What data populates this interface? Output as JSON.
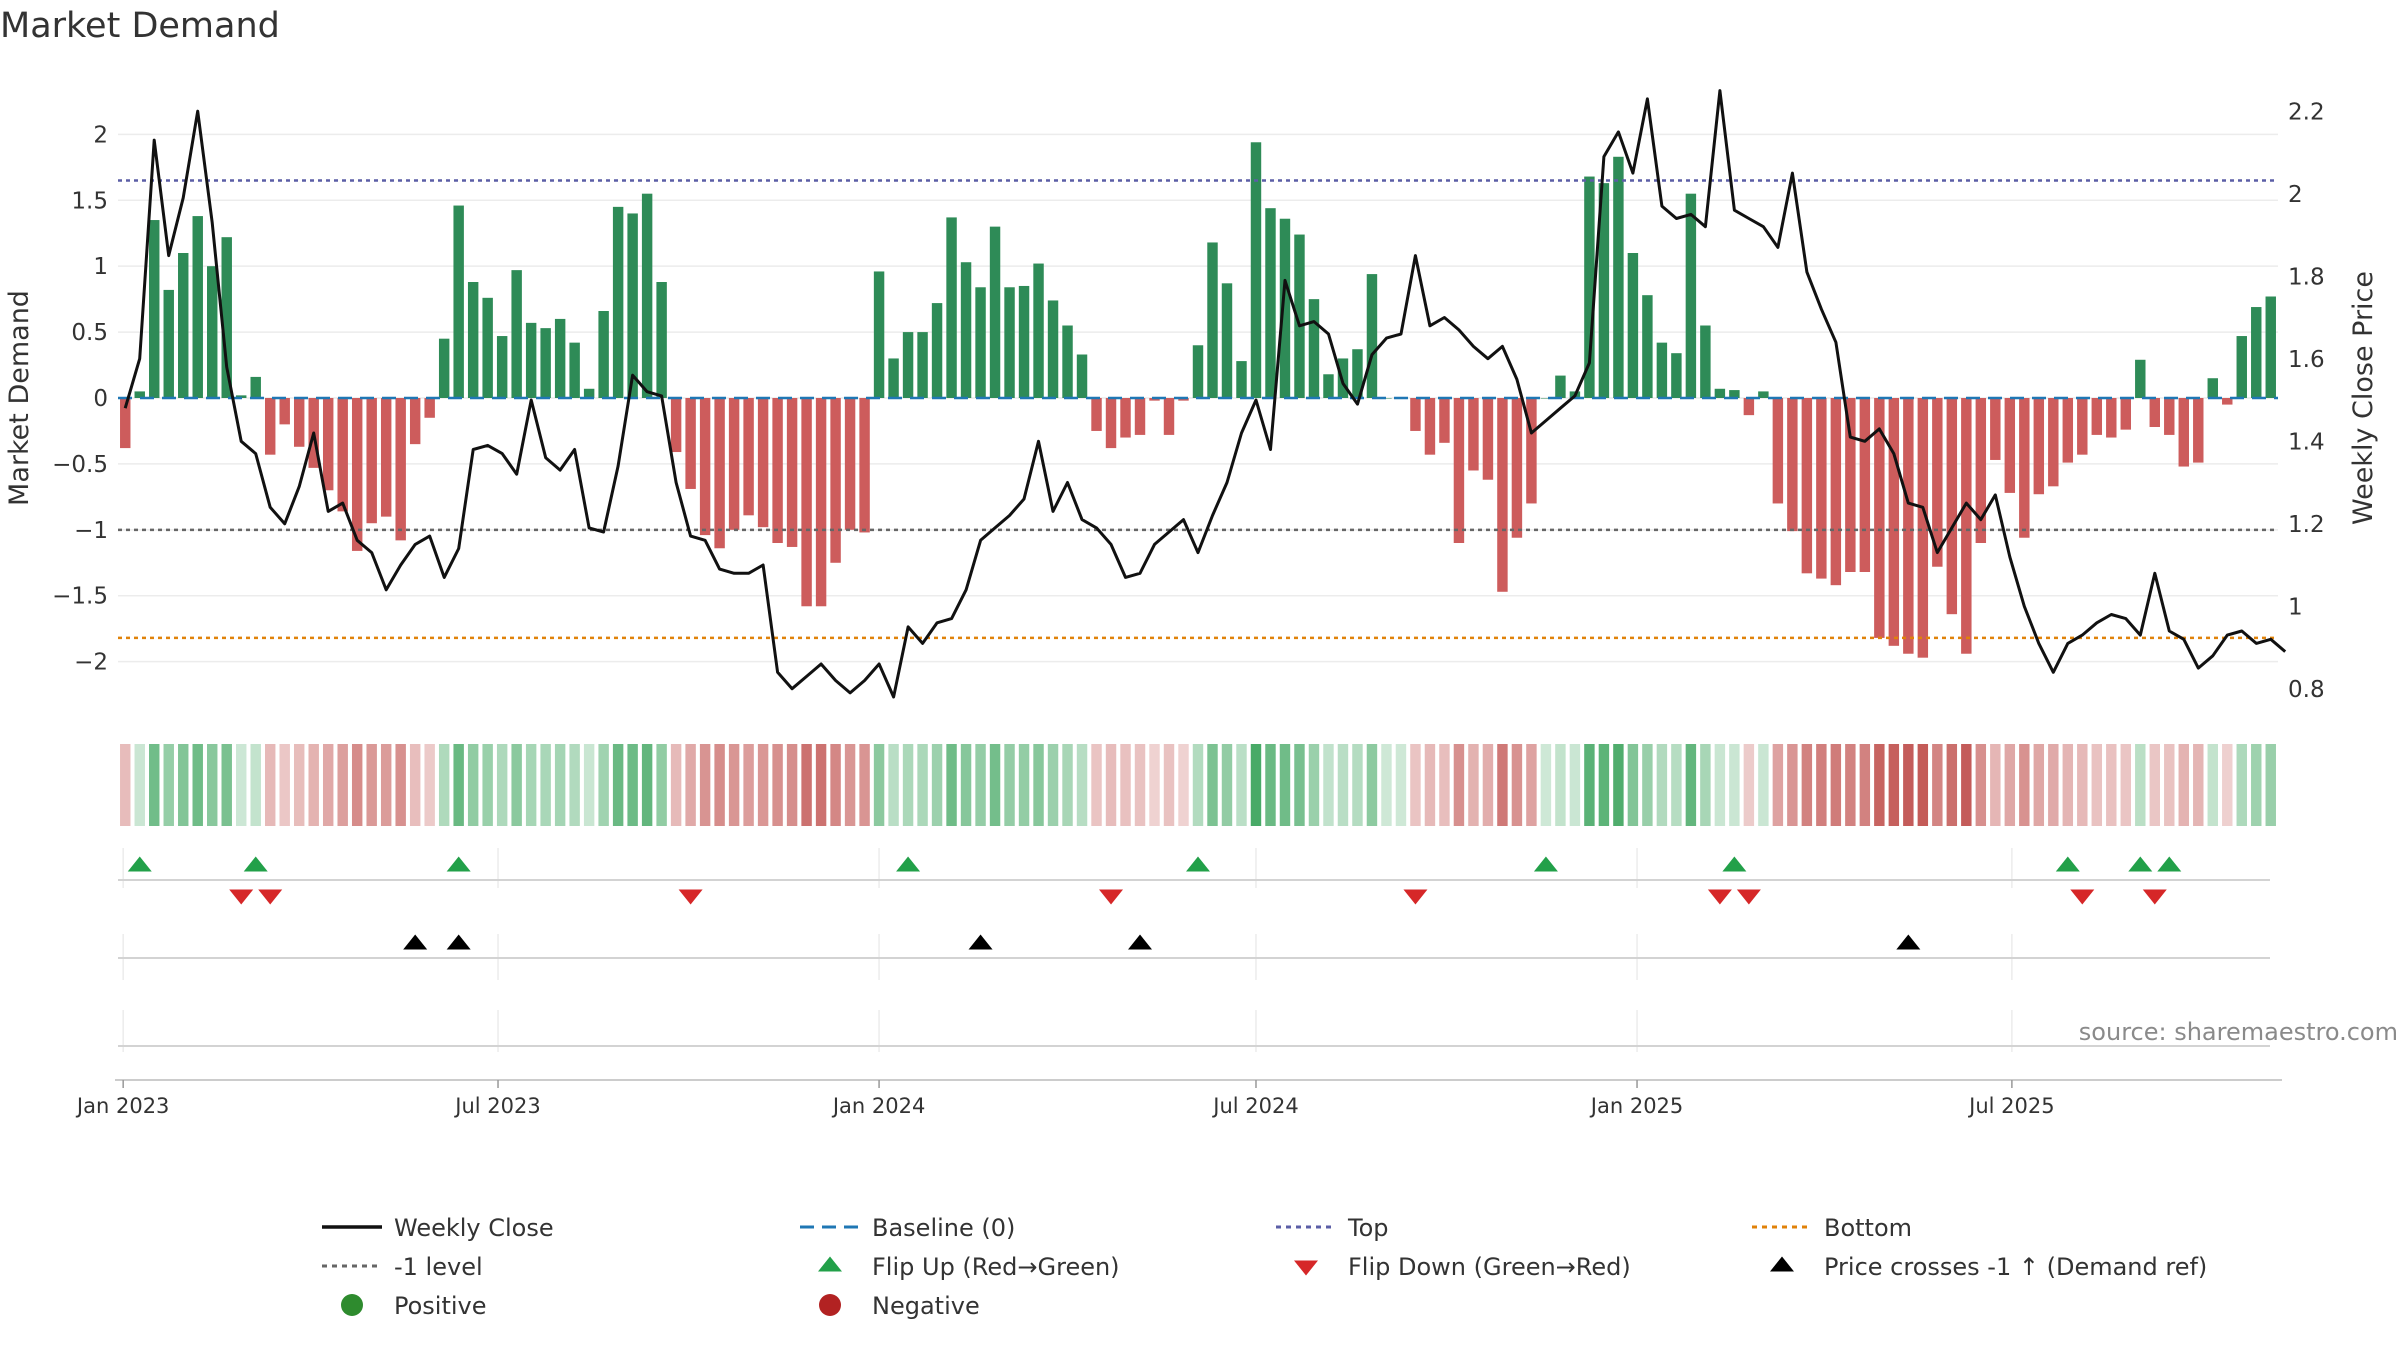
{
  "title": "Market Demand",
  "source": "source: sharemaestro.com",
  "colors": {
    "positive": "#2e8b57",
    "negative": "#cd5c5c",
    "close": "#111111",
    "baseline": "#1f77b4",
    "top": "#5b5ea6",
    "minus1": "#666666",
    "bottom": "#e0820a",
    "flipUp": "#22a049",
    "flipDown": "#d62728",
    "cross": "#000000",
    "legendPositive": "#2e8b2e",
    "legendNegative": "#b22222"
  },
  "chart_data": {
    "type": "bar",
    "title": "Market Demand",
    "ylabel": "Market Demand",
    "y2label": "Weekly Close Price",
    "ylim": [
      -2.2,
      2.2
    ],
    "y2lim": [
      0.7,
      2.3
    ],
    "yticks": [
      "2",
      "1.5",
      "1",
      "0.5",
      "0",
      "−0.5",
      "−1",
      "−1.5",
      "−2"
    ],
    "yticks_values": [
      2,
      1.5,
      1,
      0.5,
      0,
      -0.5,
      -1,
      -1.5,
      -2
    ],
    "y2ticks": [
      "2.2",
      "2",
      "1.8",
      "1.6",
      "1.4",
      "1.2",
      "1",
      "0.8"
    ],
    "y2ticks_values": [
      2.2,
      2.0,
      1.8,
      1.6,
      1.4,
      1.2,
      1.0,
      0.8
    ],
    "x_start": "2023-01-02",
    "x_step_days": 7,
    "xticks": [
      {
        "label": "Jan 2023",
        "date": "2023-01-01"
      },
      {
        "label": "Jul 2023",
        "date": "2023-07-01"
      },
      {
        "label": "Jan 2024",
        "date": "2024-01-01"
      },
      {
        "label": "Jul 2024",
        "date": "2024-07-01"
      },
      {
        "label": "Jan 2025",
        "date": "2025-01-01"
      },
      {
        "label": "Jul 2025",
        "date": "2025-07-01"
      }
    ],
    "reference_lines": {
      "top": 1.65,
      "minus1": -1.0,
      "bottom": -1.82,
      "baseline": 0
    },
    "demand": [
      -0.38,
      0.05,
      1.35,
      0.82,
      1.1,
      1.38,
      1.0,
      1.22,
      0.02,
      0.16,
      -0.43,
      -0.2,
      -0.37,
      -0.53,
      -0.7,
      -0.86,
      -1.16,
      -0.95,
      -0.9,
      -1.08,
      -0.35,
      -0.15,
      0.45,
      1.46,
      0.88,
      0.76,
      0.47,
      0.97,
      0.57,
      0.53,
      0.6,
      0.42,
      0.07,
      0.66,
      1.45,
      1.4,
      1.55,
      0.88,
      -0.41,
      -0.69,
      -1.04,
      -1.14,
      -1.0,
      -0.89,
      -0.98,
      -1.1,
      -1.13,
      -1.58,
      -1.58,
      -1.25,
      -1.0,
      -1.02,
      0.96,
      0.3,
      0.5,
      0.5,
      0.72,
      1.37,
      1.03,
      0.84,
      1.3,
      0.84,
      0.85,
      1.02,
      0.74,
      0.55,
      0.33,
      -0.25,
      -0.38,
      -0.3,
      -0.28,
      -0.02,
      -0.28,
      -0.02,
      0.4,
      1.18,
      0.87,
      0.28,
      1.94,
      1.44,
      1.36,
      1.24,
      0.75,
      0.18,
      0.3,
      0.37,
      0.94,
      0.0,
      0.0,
      -0.25,
      -0.43,
      -0.34,
      -1.1,
      -0.55,
      -0.62,
      -1.47,
      -1.06,
      -0.8,
      0.0,
      0.17,
      0.05,
      1.68,
      1.63,
      1.83,
      1.1,
      0.78,
      0.42,
      0.34,
      1.55,
      0.55,
      0.07,
      0.06,
      -0.13,
      0.05,
      -0.8,
      -1.01,
      -1.33,
      -1.37,
      -1.42,
      -1.32,
      -1.32,
      -1.82,
      -1.88,
      -1.94,
      -1.97,
      -1.28,
      -1.64,
      -1.94,
      -1.1,
      -0.47,
      -0.72,
      -1.06,
      -0.73,
      -0.67,
      -0.49,
      -0.43,
      -0.28,
      -0.3,
      -0.24,
      0.29,
      -0.22,
      -0.28,
      -0.52,
      -0.49,
      0.15,
      -0.05,
      0.47,
      0.69,
      0.77
    ],
    "close": [
      1.48,
      1.6,
      2.13,
      1.85,
      1.99,
      2.2,
      1.93,
      1.58,
      1.4,
      1.37,
      1.24,
      1.2,
      1.29,
      1.42,
      1.23,
      1.25,
      1.16,
      1.13,
      1.04,
      1.1,
      1.15,
      1.17,
      1.07,
      1.14,
      1.38,
      1.39,
      1.37,
      1.32,
      1.5,
      1.36,
      1.33,
      1.38,
      1.19,
      1.18,
      1.34,
      1.56,
      1.52,
      1.51,
      1.3,
      1.17,
      1.16,
      1.09,
      1.08,
      1.08,
      1.1,
      0.84,
      0.8,
      0.83,
      0.86,
      0.82,
      0.79,
      0.82,
      0.86,
      0.78,
      0.95,
      0.91,
      0.96,
      0.97,
      1.04,
      1.16,
      1.19,
      1.22,
      1.26,
      1.4,
      1.23,
      1.3,
      1.21,
      1.19,
      1.15,
      1.07,
      1.08,
      1.15,
      1.18,
      1.21,
      1.13,
      1.22,
      1.3,
      1.42,
      1.5,
      1.38,
      1.79,
      1.68,
      1.69,
      1.66,
      1.54,
      1.49,
      1.61,
      1.65,
      1.66,
      1.85,
      1.68,
      1.7,
      1.67,
      1.63,
      1.6,
      1.63,
      1.55,
      1.42,
      1.45,
      1.48,
      1.51,
      1.59,
      2.09,
      2.15,
      2.05,
      2.23,
      1.97,
      1.94,
      1.95,
      1.92,
      2.25,
      1.96,
      1.94,
      1.92,
      1.87,
      2.05,
      1.81,
      1.72,
      1.64,
      1.41,
      1.4,
      1.43,
      1.37,
      1.25,
      1.24,
      1.13,
      1.19,
      1.25,
      1.21,
      1.27,
      1.12,
      1.0,
      0.91,
      0.84,
      0.91,
      0.93,
      0.96,
      0.98,
      0.97,
      0.93,
      1.08,
      0.94,
      0.92,
      0.85,
      0.88,
      0.93,
      0.94,
      0.91,
      0.92,
      0.89
    ],
    "flips_up_week": [
      1,
      9,
      23,
      54,
      74,
      98,
      111,
      134,
      139,
      141
    ],
    "flips_down_week": [
      8,
      10,
      39,
      68,
      89,
      110,
      112,
      135,
      140
    ],
    "price_crosses_week": [
      20,
      23,
      59,
      70,
      123
    ],
    "legend": [
      {
        "label": "Weekly Close",
        "key": "close"
      },
      {
        "label": "Baseline (0)",
        "key": "baseline"
      },
      {
        "label": "Top",
        "key": "top"
      },
      {
        "label": "Bottom",
        "key": "bottom"
      },
      {
        "label": "-1 level",
        "key": "minus1"
      },
      {
        "label": "Flip Up (Red→Green)",
        "key": "flipUp"
      },
      {
        "label": "Flip Down (Green→Red)",
        "key": "flipDown"
      },
      {
        "label": "Price crosses -1 ↑ (Demand ref)",
        "key": "cross"
      },
      {
        "label": "Positive",
        "key": "legendPositive"
      },
      {
        "label": "Negative",
        "key": "legendNegative"
      }
    ]
  }
}
